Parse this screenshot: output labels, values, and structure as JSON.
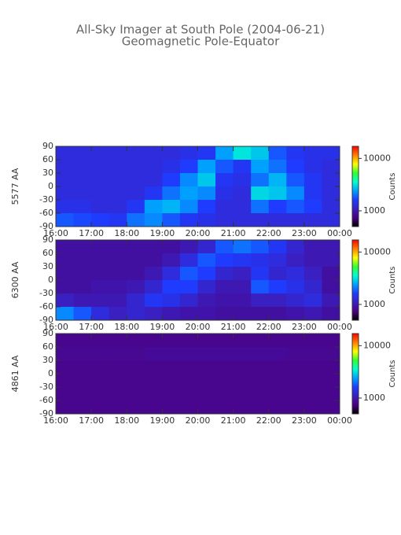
{
  "header": {
    "title": "All-Sky Imager at South Pole (2004-06-21)",
    "subtitle": "Geomagnetic Pole-Equator"
  },
  "chart_data": [
    {
      "type": "heatmap",
      "ylabel": "5577 AA",
      "xlim": [
        16,
        24
      ],
      "ylim": [
        -90,
        90
      ],
      "xticks": [
        {
          "value": 16,
          "label": "16:00"
        },
        {
          "value": 17,
          "label": "17:00"
        },
        {
          "value": 18,
          "label": "18:00"
        },
        {
          "value": 19,
          "label": "19:00"
        },
        {
          "value": 20,
          "label": "20:00"
        },
        {
          "value": 21,
          "label": "21:00"
        },
        {
          "value": 22,
          "label": "22:00"
        },
        {
          "value": 23,
          "label": "23:00"
        },
        {
          "value": 24,
          "label": "00:00"
        }
      ],
      "yticks": [
        90,
        60,
        30,
        0,
        -30,
        -60,
        -90
      ],
      "x": [
        16,
        16.5,
        17,
        17.5,
        18,
        18.5,
        19,
        19.5,
        20,
        20.5,
        21,
        21.5,
        22,
        22.5,
        23,
        23.5
      ],
      "y": [
        75,
        45,
        15,
        -15,
        -45,
        -75
      ],
      "z": [
        [
          1300,
          1300,
          1300,
          1300,
          1300,
          1300,
          1300,
          1400,
          1500,
          2400,
          3200,
          2800,
          1800,
          1500,
          1400,
          1400
        ],
        [
          1300,
          1300,
          1300,
          1300,
          1300,
          1300,
          1400,
          1600,
          2400,
          1800,
          1500,
          2400,
          2000,
          1600,
          1400,
          1300
        ],
        [
          1300,
          1300,
          1300,
          1300,
          1300,
          1300,
          1600,
          2200,
          2800,
          1500,
          1400,
          2000,
          2600,
          1800,
          1500,
          1300
        ],
        [
          1300,
          1300,
          1300,
          1300,
          1300,
          1500,
          2000,
          2400,
          2200,
          1400,
          1300,
          3000,
          2800,
          2200,
          1500,
          1300
        ],
        [
          1400,
          1400,
          1300,
          1300,
          1500,
          2400,
          2600,
          2200,
          1600,
          1300,
          1300,
          2000,
          1600,
          1800,
          1600,
          1300
        ],
        [
          1800,
          1700,
          1600,
          1500,
          2000,
          2200,
          1800,
          1500,
          1400,
          1300,
          1300,
          1300,
          1300,
          1300,
          1300,
          1300
        ]
      ],
      "colorbar": {
        "label": "Counts",
        "clim": [
          500,
          17000
        ],
        "ticks": [
          1000,
          10000
        ],
        "log": true
      },
      "colormap": [
        "#000000",
        "#4b0082",
        "#3a1fc0",
        "#1e3cff",
        "#00a0ff",
        "#00ffd0",
        "#30ff30",
        "#ffff00",
        "#ff8000",
        "#ff0000"
      ]
    },
    {
      "type": "heatmap",
      "ylabel": "6300 AA",
      "xlim": [
        16,
        24
      ],
      "ylim": [
        -90,
        90
      ],
      "xticks": [
        {
          "value": 16,
          "label": "16:00"
        },
        {
          "value": 17,
          "label": "17:00"
        },
        {
          "value": 18,
          "label": "18:00"
        },
        {
          "value": 19,
          "label": "19:00"
        },
        {
          "value": 20,
          "label": "20:00"
        },
        {
          "value": 21,
          "label": "21:00"
        },
        {
          "value": 22,
          "label": "22:00"
        },
        {
          "value": 23,
          "label": "23:00"
        },
        {
          "value": 24,
          "label": "00:00"
        }
      ],
      "yticks": [
        90,
        60,
        30,
        0,
        -30,
        -60,
        -90
      ],
      "x": [
        16,
        16.5,
        17,
        17.5,
        18,
        18.5,
        19,
        19.5,
        20,
        20.5,
        21,
        21.5,
        22,
        22.5,
        23,
        23.5
      ],
      "y": [
        75,
        45,
        15,
        -15,
        -45,
        -75
      ],
      "z": [
        [
          900,
          900,
          900,
          900,
          900,
          900,
          900,
          1000,
          1200,
          1800,
          2000,
          1800,
          1500,
          1200,
          1000,
          1000
        ],
        [
          900,
          900,
          900,
          900,
          900,
          900,
          1000,
          1300,
          1800,
          1600,
          1500,
          1400,
          1300,
          1100,
          1000,
          1000
        ],
        [
          900,
          900,
          900,
          900,
          900,
          1000,
          1300,
          1800,
          1600,
          1200,
          1100,
          1500,
          1200,
          1300,
          1100,
          900
        ],
        [
          900,
          900,
          950,
          950,
          1000,
          1200,
          1600,
          1600,
          1200,
          1000,
          1000,
          1800,
          1600,
          1400,
          1200,
          900
        ],
        [
          1100,
          1000,
          1000,
          1000,
          1200,
          1500,
          1400,
          1200,
          1000,
          950,
          950,
          1100,
          1100,
          1200,
          1300,
          1000
        ],
        [
          2200,
          1800,
          1300,
          1100,
          1200,
          1100,
          1000,
          950,
          950,
          900,
          900,
          900,
          900,
          950,
          1000,
          900
        ]
      ],
      "colorbar": {
        "label": "Counts",
        "clim": [
          500,
          17000
        ],
        "ticks": [
          1000,
          10000
        ],
        "log": true
      },
      "colormap": [
        "#000000",
        "#4b0082",
        "#3a1fc0",
        "#1e3cff",
        "#00a0ff",
        "#00ffd0",
        "#30ff30",
        "#ffff00",
        "#ff8000",
        "#ff0000"
      ]
    },
    {
      "type": "heatmap",
      "ylabel": "4861 AA",
      "xlim": [
        16,
        24
      ],
      "ylim": [
        -90,
        90
      ],
      "xticks": [
        {
          "value": 16,
          "label": "16:00"
        },
        {
          "value": 17,
          "label": "17:00"
        },
        {
          "value": 18,
          "label": "18:00"
        },
        {
          "value": 19,
          "label": "19:00"
        },
        {
          "value": 20,
          "label": "20:00"
        },
        {
          "value": 21,
          "label": "21:00"
        },
        {
          "value": 22,
          "label": "22:00"
        },
        {
          "value": 23,
          "label": "23:00"
        },
        {
          "value": 24,
          "label": "00:00"
        }
      ],
      "yticks": [
        90,
        60,
        30,
        0,
        -30,
        -60,
        -90
      ],
      "x": [
        16,
        16.5,
        17,
        17.5,
        18,
        18.5,
        19,
        19.5,
        20,
        20.5,
        21,
        21.5,
        22,
        22.5,
        23,
        23.5
      ],
      "y": [
        75,
        45,
        15,
        -15,
        -45,
        -75
      ],
      "z": [
        [
          800,
          800,
          800,
          800,
          800,
          800,
          800,
          800,
          800,
          800,
          800,
          800,
          800,
          800,
          800,
          800
        ],
        [
          820,
          820,
          820,
          820,
          820,
          850,
          850,
          850,
          850,
          850,
          850,
          850,
          850,
          820,
          820,
          820
        ],
        [
          800,
          800,
          800,
          800,
          800,
          800,
          800,
          800,
          800,
          800,
          800,
          800,
          800,
          800,
          800,
          800
        ],
        [
          800,
          800,
          800,
          800,
          800,
          800,
          800,
          800,
          800,
          800,
          800,
          800,
          800,
          800,
          800,
          800
        ],
        [
          800,
          800,
          800,
          800,
          800,
          800,
          800,
          800,
          800,
          800,
          800,
          800,
          800,
          800,
          800,
          800
        ],
        [
          800,
          800,
          800,
          800,
          800,
          800,
          800,
          800,
          800,
          800,
          800,
          800,
          800,
          800,
          800,
          800
        ]
      ],
      "colorbar": {
        "label": "Counts",
        "clim": [
          500,
          17000
        ],
        "ticks": [
          1000,
          10000
        ],
        "log": true
      },
      "colormap": [
        "#000000",
        "#4b0082",
        "#3a1fc0",
        "#1e3cff",
        "#00a0ff",
        "#00ffd0",
        "#30ff30",
        "#ffff00",
        "#ff8000",
        "#ff0000"
      ]
    }
  ]
}
